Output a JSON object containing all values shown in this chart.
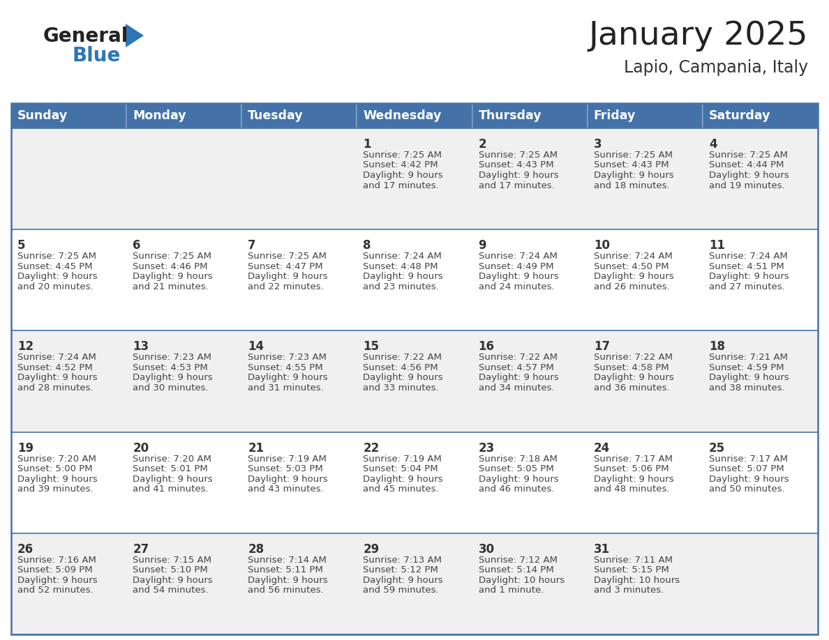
{
  "title": "January 2025",
  "subtitle": "Lapio, Campania, Italy",
  "days_of_week": [
    "Sunday",
    "Monday",
    "Tuesday",
    "Wednesday",
    "Thursday",
    "Friday",
    "Saturday"
  ],
  "header_bg": "#4472A8",
  "header_text": "#FFFFFF",
  "row_bg_odd": "#F0F0F0",
  "row_bg_even": "#FFFFFF",
  "border_color": "#4472A8",
  "text_color": "#444444",
  "day_num_color": "#333333",
  "calendar_data": [
    [
      null,
      null,
      null,
      {
        "day": 1,
        "sunrise": "7:25 AM",
        "sunset": "4:42 PM",
        "daylight": "9 hours",
        "daylight2": "and 17 minutes."
      },
      {
        "day": 2,
        "sunrise": "7:25 AM",
        "sunset": "4:43 PM",
        "daylight": "9 hours",
        "daylight2": "and 17 minutes."
      },
      {
        "day": 3,
        "sunrise": "7:25 AM",
        "sunset": "4:43 PM",
        "daylight": "9 hours",
        "daylight2": "and 18 minutes."
      },
      {
        "day": 4,
        "sunrise": "7:25 AM",
        "sunset": "4:44 PM",
        "daylight": "9 hours",
        "daylight2": "and 19 minutes."
      }
    ],
    [
      {
        "day": 5,
        "sunrise": "7:25 AM",
        "sunset": "4:45 PM",
        "daylight": "9 hours",
        "daylight2": "and 20 minutes."
      },
      {
        "day": 6,
        "sunrise": "7:25 AM",
        "sunset": "4:46 PM",
        "daylight": "9 hours",
        "daylight2": "and 21 minutes."
      },
      {
        "day": 7,
        "sunrise": "7:25 AM",
        "sunset": "4:47 PM",
        "daylight": "9 hours",
        "daylight2": "and 22 minutes."
      },
      {
        "day": 8,
        "sunrise": "7:24 AM",
        "sunset": "4:48 PM",
        "daylight": "9 hours",
        "daylight2": "and 23 minutes."
      },
      {
        "day": 9,
        "sunrise": "7:24 AM",
        "sunset": "4:49 PM",
        "daylight": "9 hours",
        "daylight2": "and 24 minutes."
      },
      {
        "day": 10,
        "sunrise": "7:24 AM",
        "sunset": "4:50 PM",
        "daylight": "9 hours",
        "daylight2": "and 26 minutes."
      },
      {
        "day": 11,
        "sunrise": "7:24 AM",
        "sunset": "4:51 PM",
        "daylight": "9 hours",
        "daylight2": "and 27 minutes."
      }
    ],
    [
      {
        "day": 12,
        "sunrise": "7:24 AM",
        "sunset": "4:52 PM",
        "daylight": "9 hours",
        "daylight2": "and 28 minutes."
      },
      {
        "day": 13,
        "sunrise": "7:23 AM",
        "sunset": "4:53 PM",
        "daylight": "9 hours",
        "daylight2": "and 30 minutes."
      },
      {
        "day": 14,
        "sunrise": "7:23 AM",
        "sunset": "4:55 PM",
        "daylight": "9 hours",
        "daylight2": "and 31 minutes."
      },
      {
        "day": 15,
        "sunrise": "7:22 AM",
        "sunset": "4:56 PM",
        "daylight": "9 hours",
        "daylight2": "and 33 minutes."
      },
      {
        "day": 16,
        "sunrise": "7:22 AM",
        "sunset": "4:57 PM",
        "daylight": "9 hours",
        "daylight2": "and 34 minutes."
      },
      {
        "day": 17,
        "sunrise": "7:22 AM",
        "sunset": "4:58 PM",
        "daylight": "9 hours",
        "daylight2": "and 36 minutes."
      },
      {
        "day": 18,
        "sunrise": "7:21 AM",
        "sunset": "4:59 PM",
        "daylight": "9 hours",
        "daylight2": "and 38 minutes."
      }
    ],
    [
      {
        "day": 19,
        "sunrise": "7:20 AM",
        "sunset": "5:00 PM",
        "daylight": "9 hours",
        "daylight2": "and 39 minutes."
      },
      {
        "day": 20,
        "sunrise": "7:20 AM",
        "sunset": "5:01 PM",
        "daylight": "9 hours",
        "daylight2": "and 41 minutes."
      },
      {
        "day": 21,
        "sunrise": "7:19 AM",
        "sunset": "5:03 PM",
        "daylight": "9 hours",
        "daylight2": "and 43 minutes."
      },
      {
        "day": 22,
        "sunrise": "7:19 AM",
        "sunset": "5:04 PM",
        "daylight": "9 hours",
        "daylight2": "and 45 minutes."
      },
      {
        "day": 23,
        "sunrise": "7:18 AM",
        "sunset": "5:05 PM",
        "daylight": "9 hours",
        "daylight2": "and 46 minutes."
      },
      {
        "day": 24,
        "sunrise": "7:17 AM",
        "sunset": "5:06 PM",
        "daylight": "9 hours",
        "daylight2": "and 48 minutes."
      },
      {
        "day": 25,
        "sunrise": "7:17 AM",
        "sunset": "5:07 PM",
        "daylight": "9 hours",
        "daylight2": "and 50 minutes."
      }
    ],
    [
      {
        "day": 26,
        "sunrise": "7:16 AM",
        "sunset": "5:09 PM",
        "daylight": "9 hours",
        "daylight2": "and 52 minutes."
      },
      {
        "day": 27,
        "sunrise": "7:15 AM",
        "sunset": "5:10 PM",
        "daylight": "9 hours",
        "daylight2": "and 54 minutes."
      },
      {
        "day": 28,
        "sunrise": "7:14 AM",
        "sunset": "5:11 PM",
        "daylight": "9 hours",
        "daylight2": "and 56 minutes."
      },
      {
        "day": 29,
        "sunrise": "7:13 AM",
        "sunset": "5:12 PM",
        "daylight": "9 hours",
        "daylight2": "and 59 minutes."
      },
      {
        "day": 30,
        "sunrise": "7:12 AM",
        "sunset": "5:14 PM",
        "daylight": "10 hours",
        "daylight2": "and 1 minute."
      },
      {
        "day": 31,
        "sunrise": "7:11 AM",
        "sunset": "5:15 PM",
        "daylight": "10 hours",
        "daylight2": "and 3 minutes."
      },
      null
    ]
  ],
  "logo_general_color": "#222222",
  "logo_blue_color": "#2E75B6",
  "title_color": "#222222",
  "subtitle_color": "#333333",
  "figsize": [
    11.88,
    9.18
  ],
  "dpi": 100
}
